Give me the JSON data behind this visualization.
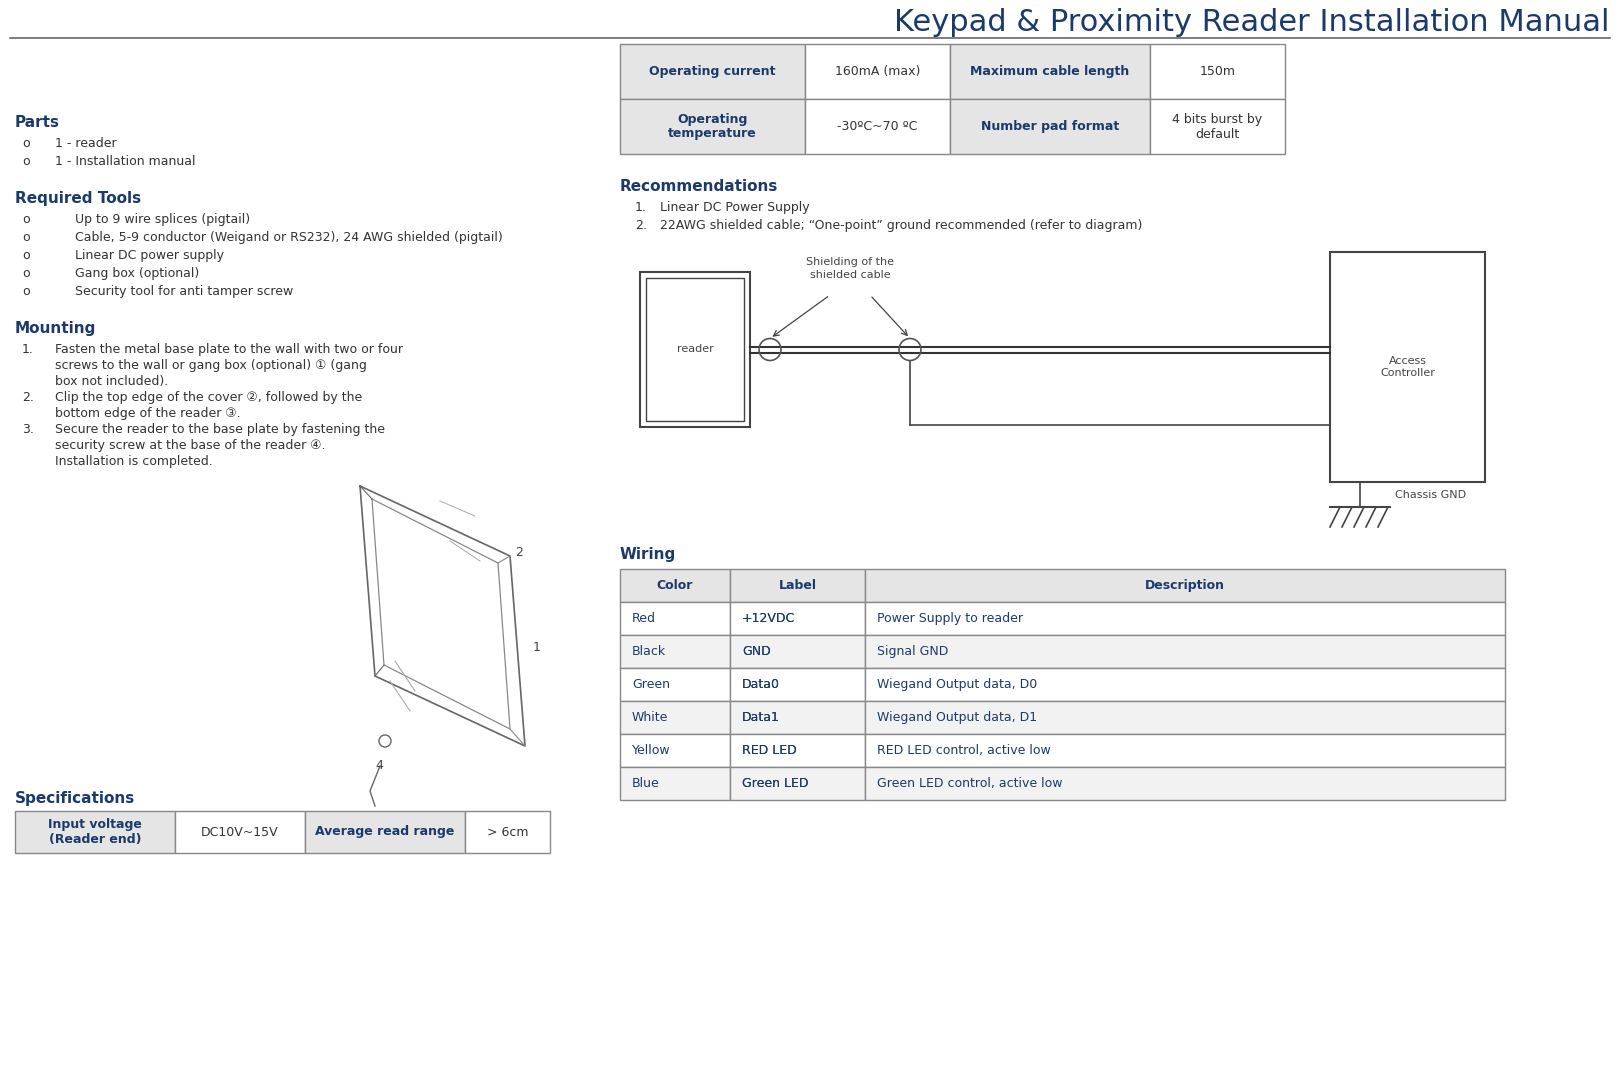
{
  "title": "Keypad & Proximity Reader Installation Manual",
  "hc": "#1b3a6b",
  "bc": "#333333",
  "bg": "#ffffff",
  "th_bg": "#e5e5e5",
  "tr_bg1": "#ffffff",
  "tr_bg2": "#f2f2f2",
  "border": "#888888",
  "parts_title": "Parts",
  "parts_items": [
    "1 - reader",
    "1 - Installation manual"
  ],
  "tools_title": "Required Tools",
  "tools_items": [
    "Up to 9 wire splices (pigtail)",
    "Cable, 5-9 conductor (Weigand or RS232), 24 AWG shielded (pigtail)",
    "Linear DC power supply",
    "Gang box (optional)",
    "Security tool for anti tamper screw"
  ],
  "mounting_title": "Mounting",
  "mounting_items": [
    [
      "Fasten the metal base plate to the wall with two or four",
      "screws to the wall or gang box (optional) ① (gang",
      "box not included)."
    ],
    [
      "Clip the top edge of the cover ②, followed by the",
      "bottom edge of the reader ③."
    ],
    [
      "Secure the reader to the base plate by fastening the",
      "security screw at the base of the reader ④.",
      "Installation is completed."
    ]
  ],
  "specs_title": "Specifications",
  "specs_top": [
    [
      "Operating current",
      "160mA (max)",
      "Maximum cable length",
      "150m"
    ],
    [
      "Operating\ntemperature",
      "-30ºC~70 ºC",
      "Number pad format",
      "4 bits burst by\ndefault"
    ]
  ],
  "specs_bot": [
    "Input voltage\n(Reader end)",
    "DC10V~15V",
    "Average read range",
    "> 6cm"
  ],
  "recs_title": "Recommendations",
  "recs_items": [
    "Linear DC Power Supply",
    "22AWG shielded cable; “One-point” ground recommended (refer to diagram)"
  ],
  "wiring_title": "Wiring",
  "wiring_headers": [
    "Color",
    "Label",
    "Description"
  ],
  "wiring_rows": [
    [
      "Red",
      "+12VDC",
      "Power Supply to reader"
    ],
    [
      "Black",
      "GND",
      "Signal GND"
    ],
    [
      "Green",
      "Data0",
      "Wiegand Output data, D0"
    ],
    [
      "White",
      "Data1",
      "Wiegand Output data, D1"
    ],
    [
      "Yellow",
      "RED LED",
      "RED LED control, active low"
    ],
    [
      "Blue",
      "Green LED",
      "Green LED control, active low"
    ]
  ]
}
